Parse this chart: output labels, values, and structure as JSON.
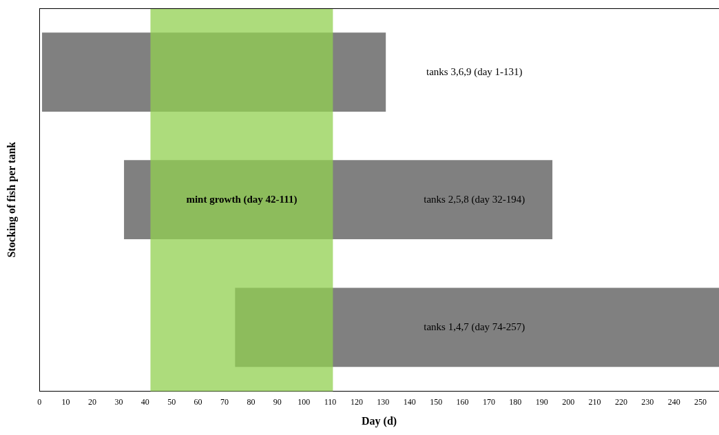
{
  "chart_data": {
    "type": "bar",
    "orientation": "horizontal",
    "xlabel": "Day (d)",
    "ylabel": "Stocking of fish per tank",
    "categories": [
      null,
      null,
      null
    ],
    "base": [
      1,
      32,
      74
    ],
    "values": [
      130,
      162,
      183
    ],
    "color": "#808080",
    "value_labels": [
      "tanks 3,6,9 (day 1-131)",
      "tanks 2,5,8 (day 32-194)",
      "tanks 1,4,7 (day 74-257)"
    ],
    "xlim": [
      0,
      257
    ],
    "xticks": [
      0,
      10,
      20,
      30,
      40,
      50,
      60,
      70,
      80,
      90,
      100,
      110,
      120,
      130,
      140,
      150,
      160,
      170,
      180,
      190,
      200,
      210,
      220,
      230,
      240,
      250
    ],
    "bands": [
      {
        "axis": "x",
        "from": 42,
        "to": 111,
        "label": "mint growth (day 42-111)",
        "color": "#92d050"
      }
    ],
    "grid": false,
    "legend": false,
    "tick_labels": "x"
  }
}
